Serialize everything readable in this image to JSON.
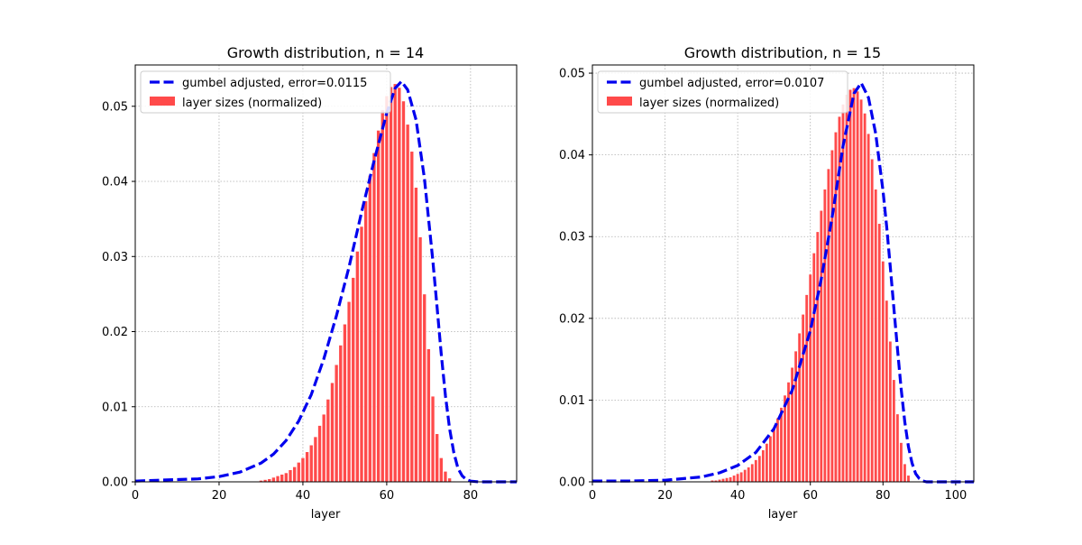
{
  "colors": {
    "bar": "#ff4a4a",
    "bar_edge": "#ffffff",
    "fit_line": "#0000ee",
    "grid": "#b0b0b0"
  },
  "chart_data": [
    {
      "type": "bar",
      "title": "Growth distribution, n = 14",
      "xlabel": "layer",
      "ylabel": "",
      "xlim": [
        0,
        91
      ],
      "ylim": [
        0,
        0.0555
      ],
      "xticks": [
        "0",
        "20",
        "40",
        "60",
        "80"
      ],
      "yticks": [
        "0.00",
        "0.01",
        "0.02",
        "0.03",
        "0.04",
        "0.05"
      ],
      "grid": true,
      "legend_position": "upper-left",
      "legend": [
        "gumbel adjusted, error=0.0115",
        "layer sizes (normalized)"
      ],
      "gumbel_fit": {
        "mode": 63.5,
        "scale": 6.9,
        "peak": 0.0533
      },
      "series": [
        {
          "name": "layer sizes (normalized)",
          "kind": "bar",
          "x": [
            30,
            31,
            32,
            33,
            34,
            35,
            36,
            37,
            38,
            39,
            40,
            41,
            42,
            43,
            44,
            45,
            46,
            47,
            48,
            49,
            50,
            51,
            52,
            53,
            54,
            55,
            56,
            57,
            58,
            59,
            60,
            61,
            62,
            63,
            64,
            65,
            66,
            67,
            68,
            69,
            70,
            71,
            72,
            73,
            74,
            75,
            76
          ],
          "values": [
            0.0002,
            0.0003,
            0.0004,
            0.0006,
            0.0008,
            0.001,
            0.0012,
            0.0016,
            0.002,
            0.0026,
            0.0032,
            0.004,
            0.0049,
            0.006,
            0.0075,
            0.009,
            0.011,
            0.0132,
            0.0156,
            0.0182,
            0.021,
            0.024,
            0.0272,
            0.0307,
            0.034,
            0.0374,
            0.0408,
            0.0438,
            0.0468,
            0.0495,
            0.0514,
            0.0526,
            0.053,
            0.0525,
            0.0507,
            0.0476,
            0.044,
            0.0392,
            0.0326,
            0.025,
            0.0177,
            0.0114,
            0.0064,
            0.0032,
            0.0014,
            0.0005,
            0.0001
          ]
        },
        {
          "name": "gumbel adjusted, error=0.0115",
          "kind": "line",
          "x": [
            0,
            5,
            10,
            15,
            20,
            25,
            30,
            33,
            36,
            39,
            42,
            45,
            48,
            51,
            54,
            57,
            60,
            62,
            63.5,
            65,
            67,
            69,
            71,
            72,
            73,
            74,
            75,
            76,
            77,
            78,
            79,
            80,
            82,
            85,
            91
          ],
          "values": [
            0.0001,
            0.0002,
            0.0003,
            0.0004,
            0.0007,
            0.0013,
            0.0025,
            0.0037,
            0.0055,
            0.0081,
            0.0116,
            0.0164,
            0.0221,
            0.0286,
            0.0359,
            0.0428,
            0.0491,
            0.0524,
            0.0533,
            0.0522,
            0.0482,
            0.0404,
            0.0295,
            0.0233,
            0.0171,
            0.0115,
            0.0071,
            0.0039,
            0.0018,
            0.0008,
            0.0003,
            0.0001,
            0.0,
            0.0,
            0.0
          ]
        }
      ]
    },
    {
      "type": "bar",
      "title": "Growth distribution, n = 15",
      "xlabel": "layer",
      "ylabel": "",
      "xlim": [
        0,
        105
      ],
      "ylim": [
        0,
        0.051
      ],
      "xticks": [
        "0",
        "20",
        "40",
        "60",
        "80",
        "100"
      ],
      "yticks": [
        "0.00",
        "0.01",
        "0.02",
        "0.03",
        "0.04",
        "0.05"
      ],
      "grid": true,
      "legend_position": "upper-left",
      "legend": [
        "gumbel adjusted, error=0.0107",
        "layer sizes (normalized)"
      ],
      "gumbel_fit": {
        "mode": 74.0,
        "scale": 7.5,
        "peak": 0.0488
      },
      "series": [
        {
          "name": "layer sizes (normalized)",
          "kind": "bar",
          "x": [
            33,
            34,
            35,
            36,
            37,
            38,
            39,
            40,
            41,
            42,
            43,
            44,
            45,
            46,
            47,
            48,
            49,
            50,
            51,
            52,
            53,
            54,
            55,
            56,
            57,
            58,
            59,
            60,
            61,
            62,
            63,
            64,
            65,
            66,
            67,
            68,
            69,
            70,
            71,
            72,
            73,
            74,
            75,
            76,
            77,
            78,
            79,
            80,
            81,
            82,
            83,
            84,
            85,
            86,
            87
          ],
          "values": [
            0.0002,
            0.0002,
            0.0003,
            0.0004,
            0.0005,
            0.0006,
            0.0008,
            0.001,
            0.0012,
            0.0015,
            0.0018,
            0.0022,
            0.0027,
            0.0032,
            0.0039,
            0.0047,
            0.0056,
            0.0066,
            0.0078,
            0.0091,
            0.0106,
            0.0122,
            0.014,
            0.016,
            0.0182,
            0.0205,
            0.0229,
            0.0254,
            0.028,
            0.0306,
            0.0332,
            0.0358,
            0.0383,
            0.0406,
            0.0428,
            0.0447,
            0.0462,
            0.0474,
            0.048,
            0.0482,
            0.0478,
            0.0468,
            0.0451,
            0.0426,
            0.0395,
            0.0358,
            0.0316,
            0.027,
            0.0222,
            0.0172,
            0.0125,
            0.0083,
            0.0048,
            0.0022,
            0.0008
          ]
        },
        {
          "name": "gumbel adjusted, error=0.0107",
          "kind": "line",
          "x": [
            0,
            10,
            20,
            30,
            35,
            40,
            45,
            50,
            55,
            60,
            63,
            66,
            69,
            72,
            74,
            76,
            78,
            80,
            81,
            82,
            83,
            84,
            85,
            86,
            87,
            88,
            89,
            90,
            91,
            92,
            95,
            105
          ],
          "values": [
            0.0001,
            0.0001,
            0.0002,
            0.0006,
            0.0011,
            0.002,
            0.0036,
            0.0065,
            0.0112,
            0.0185,
            0.0248,
            0.0324,
            0.0411,
            0.0475,
            0.0488,
            0.047,
            0.0426,
            0.0356,
            0.0313,
            0.0264,
            0.0212,
            0.0162,
            0.0114,
            0.0073,
            0.0043,
            0.0023,
            0.001,
            0.0004,
            0.0001,
            0.0,
            0.0,
            0.0
          ]
        }
      ]
    }
  ]
}
